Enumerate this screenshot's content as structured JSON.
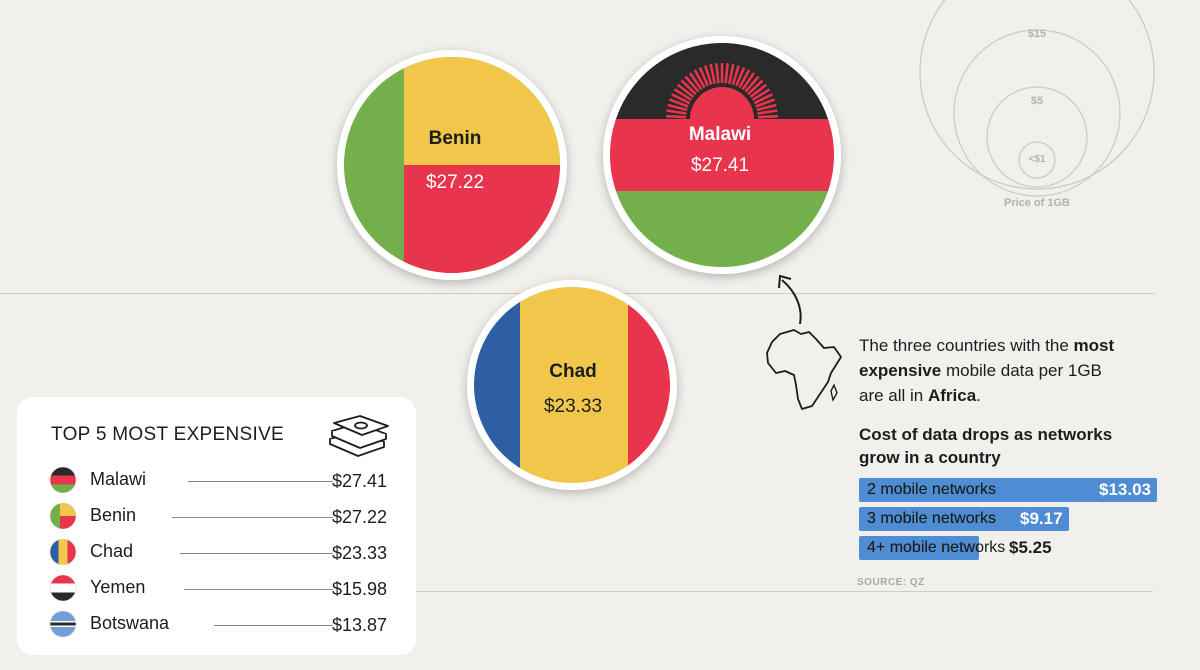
{
  "chart_data": [
    {
      "type": "table",
      "title": "TOP 5 MOST EXPENSIVE",
      "rows": [
        {
          "country": "Malawi",
          "value": 27.41,
          "label": "$27.41"
        },
        {
          "country": "Benin",
          "value": 27.22,
          "label": "$27.22"
        },
        {
          "country": "Chad",
          "value": 23.33,
          "label": "$23.33"
        },
        {
          "country": "Yemen",
          "value": 15.98,
          "label": "$15.98"
        },
        {
          "country": "Botswana",
          "value": 13.87,
          "label": "$13.87"
        }
      ]
    },
    {
      "type": "bar",
      "title": "Cost of data drops as networks grow in a country",
      "categories": [
        "2 mobile networks",
        "3 mobile networks",
        "4+ mobile networks"
      ],
      "values": [
        13.03,
        9.17,
        5.25
      ],
      "labels": [
        "$13.03",
        "$9.17",
        "$5.25"
      ]
    }
  ],
  "flags": [
    {
      "country": "Benin",
      "price": "$27.22",
      "colors": {
        "green": "#74b04a",
        "yellow": "#f0c74b",
        "red": "#e8344c"
      }
    },
    {
      "country": "Malawi",
      "price": "$27.41",
      "colors": {
        "black": "#2a2a2a",
        "red": "#e8344c",
        "green": "#74b04a"
      }
    },
    {
      "country": "Chad",
      "price": "$23.33",
      "colors": {
        "blue": "#2e5fa4",
        "yellow": "#f0c74b",
        "red": "#e8344c"
      }
    }
  ],
  "size_legend": {
    "labels": [
      "$15",
      "$5",
      "<$1"
    ],
    "caption": "Price of 1GB"
  },
  "note": {
    "text_1": "The three countries with the ",
    "bold_1": "most expensive",
    "text_2": " mobile data per 1GB are all in ",
    "bold_2": "Africa",
    "text_3": "."
  },
  "source": "SOURCE: QZ",
  "icons": {
    "money": "money-stack-icon",
    "africa": "africa-outline-icon",
    "arrow": "curved-arrow-icon"
  }
}
